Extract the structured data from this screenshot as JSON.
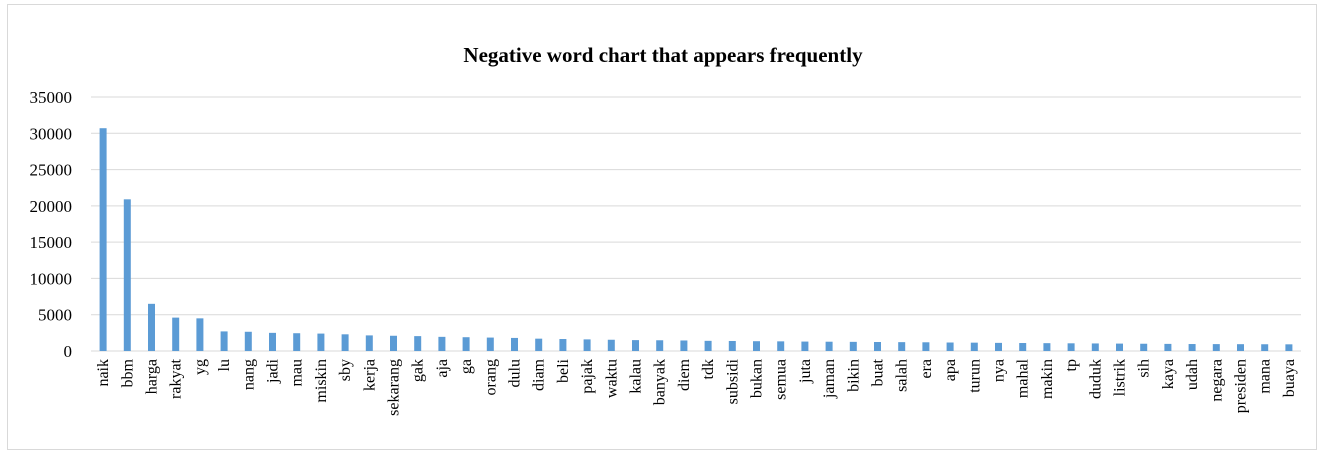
{
  "chart_data": {
    "type": "bar",
    "title": "Negative word chart that appears frequently",
    "xlabel": "",
    "ylabel": "",
    "ylim": [
      0,
      35000
    ],
    "yticks": [
      0,
      5000,
      10000,
      15000,
      20000,
      25000,
      30000,
      35000
    ],
    "grid": true,
    "legend": "none",
    "bar_color": "#5b9bd5",
    "grid_color": "#d9d9d9",
    "categories": [
      "naik",
      "bbm",
      "harga",
      "rakyat",
      "yg",
      "lu",
      "nang",
      "jadi",
      "mau",
      "miskin",
      "sby",
      "kerja",
      "sekarang",
      "gak",
      "aja",
      "ga",
      "orang",
      "dulu",
      "diam",
      "beli",
      "pajak",
      "waktu",
      "kalau",
      "banyak",
      "diem",
      "tdk",
      "subsidi",
      "bukan",
      "semua",
      "juta",
      "jaman",
      "bikin",
      "buat",
      "salah",
      "era",
      "apa",
      "turun",
      "nya",
      "mahal",
      "makin",
      "tp",
      "duduk",
      "listrik",
      "sih",
      "kaya",
      "udah",
      "negara",
      "presiden",
      "mana",
      "buaya"
    ],
    "values": [
      30700,
      20900,
      6500,
      4600,
      4500,
      2700,
      2650,
      2500,
      2450,
      2400,
      2300,
      2150,
      2100,
      2050,
      1950,
      1900,
      1850,
      1800,
      1700,
      1650,
      1600,
      1550,
      1500,
      1480,
      1450,
      1400,
      1380,
      1350,
      1330,
      1300,
      1280,
      1260,
      1240,
      1220,
      1200,
      1170,
      1150,
      1120,
      1100,
      1080,
      1060,
      1040,
      1020,
      1000,
      980,
      960,
      950,
      940,
      930,
      920
    ]
  }
}
